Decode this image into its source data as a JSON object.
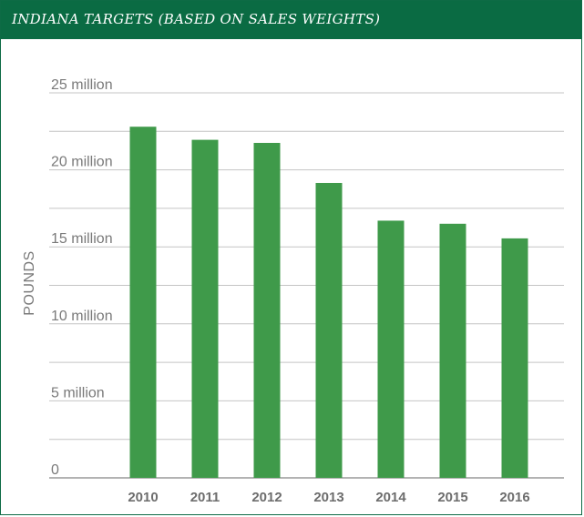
{
  "chart_data": {
    "type": "bar",
    "title": "INDIANA TARGETS (BASED ON SALES WEIGHTS)",
    "ylabel": "POUNDS",
    "xlabel": "",
    "categories": [
      "2010",
      "2011",
      "2012",
      "2013",
      "2014",
      "2015",
      "2016"
    ],
    "values": [
      22800000,
      21950000,
      21750000,
      19150000,
      16700000,
      16500000,
      15550000
    ],
    "ylim": [
      0,
      25000000
    ],
    "y_ticks": [
      {
        "value": 0,
        "label": "0"
      },
      {
        "value": 5000000,
        "label": "5 million"
      },
      {
        "value": 10000000,
        "label": "10 million"
      },
      {
        "value": 15000000,
        "label": "15 million"
      },
      {
        "value": 20000000,
        "label": "20 million"
      },
      {
        "value": 25000000,
        "label": "25 million"
      }
    ],
    "minor_gridlines": true,
    "grid": true,
    "legend": "none",
    "colors": {
      "bar": "#3f9a4a",
      "title_bar": "#0a6b43",
      "gridline": "#c4c4c4",
      "baseline": "#9a9a9a"
    }
  }
}
